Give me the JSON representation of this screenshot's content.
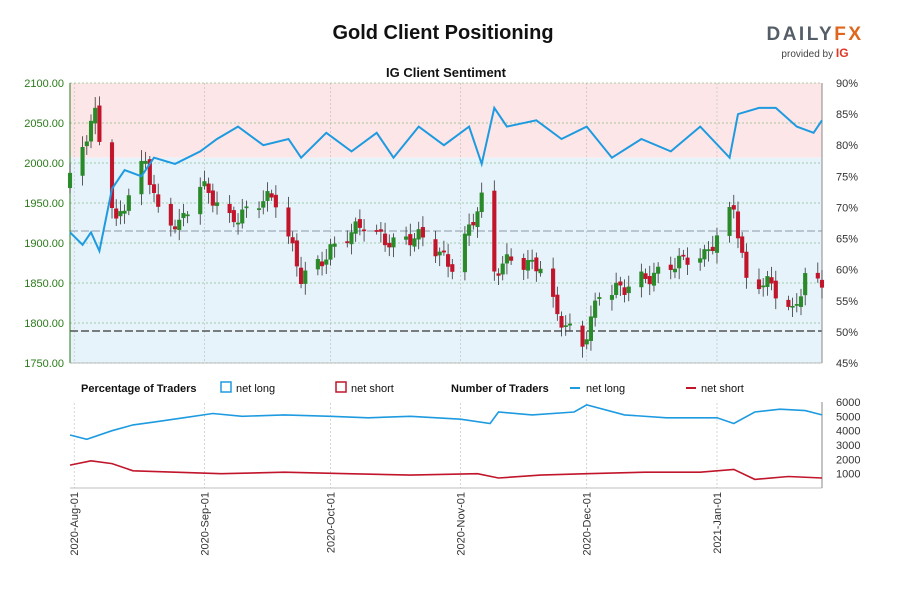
{
  "title": "Gold Client Positioning",
  "logo": {
    "brand": "DAILY",
    "brand_fx": "FX",
    "provided_by": "provided by",
    "ig": "IG"
  },
  "colors": {
    "net_long": "#1e9be0",
    "net_short": "#c0152a",
    "candle_up": "#2a8a2a",
    "candle_down": "#c0152a",
    "upper_fill": "#fde6e7",
    "lower_fill": "#e7f3fb",
    "price_axis": "#2a7a1a"
  },
  "chart_data": [
    {
      "type": "candlestick",
      "subtitle": "IG Client Sentiment",
      "x": [
        "2020-Aug-01",
        "2020-Sep-01",
        "2020-Oct-01",
        "2020-Nov-01",
        "2020-Dec-01",
        "2021-Jan-01"
      ],
      "x_range": [
        "2020-07-31",
        "2021-01-26"
      ],
      "y_left": {
        "ticks": [
          "2100.00",
          "2050.00",
          "2000.00",
          "1950.00",
          "1900.00",
          "1850.00",
          "1800.00",
          "1750.00"
        ],
        "ylim": [
          1750,
          2100
        ]
      },
      "y_right": {
        "ticks": [
          "90%",
          "85%",
          "80%",
          "75%",
          "70%",
          "65%",
          "60%",
          "55%",
          "50%",
          "45%"
        ],
        "ylim": [
          45,
          90
        ]
      },
      "reference_lines": [
        1915,
        1790
      ],
      "price_anchors": [
        [
          "2020-07-31",
          1975
        ],
        [
          "2020-08-06",
          2065
        ],
        [
          "2020-08-11",
          1925
        ],
        [
          "2020-08-18",
          2000
        ],
        [
          "2020-08-21",
          1940
        ],
        [
          "2020-08-26",
          1925
        ],
        [
          "2020-08-31",
          1970
        ],
        [
          "2020-09-07",
          1930
        ],
        [
          "2020-09-15",
          1955
        ],
        [
          "2020-09-18",
          1950
        ],
        [
          "2020-09-24",
          1860
        ],
        [
          "2020-09-30",
          1885
        ],
        [
          "2020-10-05",
          1905
        ],
        [
          "2020-10-09",
          1925
        ],
        [
          "2020-10-16",
          1900
        ],
        [
          "2020-10-23",
          1905
        ],
        [
          "2020-10-30",
          1875
        ],
        [
          "2020-11-06",
          1950
        ],
        [
          "2020-11-09",
          1860
        ],
        [
          "2020-11-13",
          1885
        ],
        [
          "2020-11-20",
          1870
        ],
        [
          "2020-11-24",
          1805
        ],
        [
          "2020-11-30",
          1775
        ],
        [
          "2020-12-04",
          1840
        ],
        [
          "2020-12-10",
          1840
        ],
        [
          "2020-12-16",
          1860
        ],
        [
          "2020-12-21",
          1875
        ],
        [
          "2020-12-29",
          1880
        ],
        [
          "2021-01-05",
          1950
        ],
        [
          "2021-01-08",
          1850
        ],
        [
          "2021-01-14",
          1845
        ],
        [
          "2021-01-19",
          1815
        ],
        [
          "2021-01-22",
          1860
        ],
        [
          "2021-01-25",
          1850
        ]
      ],
      "series": [
        {
          "name": "net long",
          "axis": "right",
          "values": [
            [
              "2020-07-31",
              66
            ],
            [
              "2020-08-03",
              64
            ],
            [
              "2020-08-05",
              66
            ],
            [
              "2020-08-07",
              63
            ],
            [
              "2020-08-10",
              73
            ],
            [
              "2020-08-13",
              76
            ],
            [
              "2020-08-17",
              75
            ],
            [
              "2020-08-20",
              78
            ],
            [
              "2020-08-25",
              77
            ],
            [
              "2020-08-31",
              79
            ],
            [
              "2020-09-04",
              81
            ],
            [
              "2020-09-09",
              83
            ],
            [
              "2020-09-15",
              80
            ],
            [
              "2020-09-21",
              81
            ],
            [
              "2020-09-24",
              78
            ],
            [
              "2020-09-30",
              82
            ],
            [
              "2020-10-06",
              79
            ],
            [
              "2020-10-12",
              82
            ],
            [
              "2020-10-16",
              78
            ],
            [
              "2020-10-22",
              83
            ],
            [
              "2020-10-28",
              80
            ],
            [
              "2020-11-03",
              83
            ],
            [
              "2020-11-06",
              77
            ],
            [
              "2020-11-09",
              86
            ],
            [
              "2020-11-12",
              83
            ],
            [
              "2020-11-19",
              84
            ],
            [
              "2020-11-25",
              81
            ],
            [
              "2020-12-01",
              83
            ],
            [
              "2020-12-07",
              78
            ],
            [
              "2020-12-14",
              81
            ],
            [
              "2020-12-21",
              79
            ],
            [
              "2020-12-28",
              83
            ],
            [
              "2021-01-04",
              78
            ],
            [
              "2021-01-06",
              85
            ],
            [
              "2021-01-11",
              86
            ],
            [
              "2021-01-15",
              86
            ],
            [
              "2021-01-20",
              83
            ],
            [
              "2021-01-24",
              82
            ],
            [
              "2021-01-26",
              84
            ]
          ]
        }
      ]
    },
    {
      "type": "line",
      "title": "Number of Traders",
      "y_right": {
        "ticks": [
          "6000",
          "5000",
          "4000",
          "3000",
          "2000",
          "1000"
        ],
        "ylim": [
          0,
          6000
        ]
      },
      "series": [
        {
          "name": "net long",
          "values": [
            [
              "2020-07-31",
              3700
            ],
            [
              "2020-08-04",
              3400
            ],
            [
              "2020-08-10",
              4000
            ],
            [
              "2020-08-15",
              4400
            ],
            [
              "2020-08-20",
              4600
            ],
            [
              "2020-08-27",
              4900
            ],
            [
              "2020-09-03",
              5200
            ],
            [
              "2020-09-10",
              5000
            ],
            [
              "2020-09-20",
              5100
            ],
            [
              "2020-10-01",
              5000
            ],
            [
              "2020-10-10",
              4900
            ],
            [
              "2020-10-20",
              5000
            ],
            [
              "2020-11-01",
              4800
            ],
            [
              "2020-11-08",
              4500
            ],
            [
              "2020-11-10",
              5300
            ],
            [
              "2020-11-18",
              5100
            ],
            [
              "2020-11-28",
              5300
            ],
            [
              "2020-12-01",
              5800
            ],
            [
              "2020-12-10",
              5100
            ],
            [
              "2020-12-20",
              4900
            ],
            [
              "2021-01-01",
              4900
            ],
            [
              "2021-01-05",
              4500
            ],
            [
              "2021-01-10",
              5300
            ],
            [
              "2021-01-16",
              5500
            ],
            [
              "2021-01-22",
              5400
            ],
            [
              "2021-01-26",
              5100
            ]
          ]
        },
        {
          "name": "net short",
          "values": [
            [
              "2020-07-31",
              1600
            ],
            [
              "2020-08-05",
              1900
            ],
            [
              "2020-08-10",
              1700
            ],
            [
              "2020-08-15",
              1200
            ],
            [
              "2020-08-25",
              1100
            ],
            [
              "2020-09-05",
              1000
            ],
            [
              "2020-09-20",
              1100
            ],
            [
              "2020-10-05",
              1000
            ],
            [
              "2020-10-20",
              900
            ],
            [
              "2020-11-05",
              1000
            ],
            [
              "2020-11-10",
              700
            ],
            [
              "2020-11-20",
              900
            ],
            [
              "2020-12-01",
              1000
            ],
            [
              "2020-12-15",
              1100
            ],
            [
              "2020-12-28",
              1100
            ],
            [
              "2021-01-05",
              1300
            ],
            [
              "2021-01-10",
              600
            ],
            [
              "2021-01-18",
              800
            ],
            [
              "2021-01-26",
              700
            ]
          ]
        }
      ]
    }
  ],
  "legend": {
    "pct_title": "Percentage of Traders",
    "num_title": "Number of Traders",
    "net_long": "net long",
    "net_short": "net short"
  }
}
